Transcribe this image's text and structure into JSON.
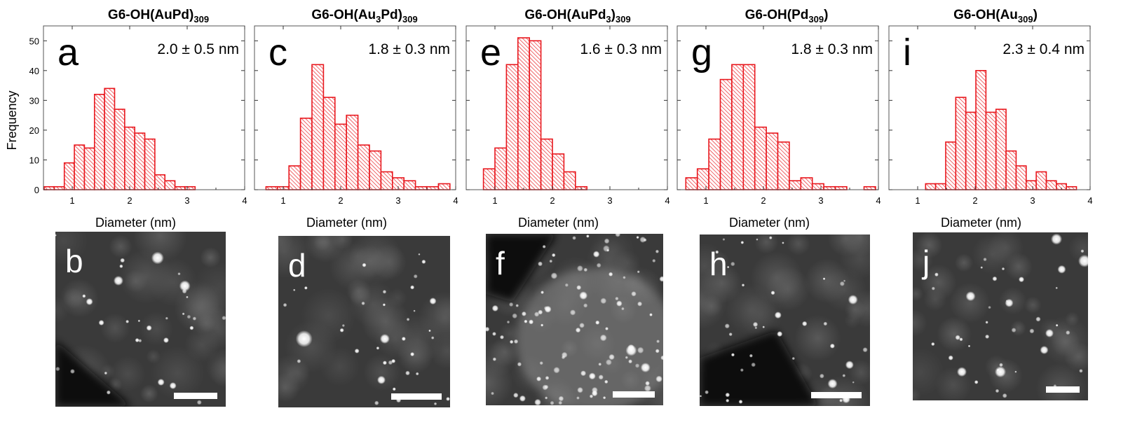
{
  "shared": {
    "ylabel": "Frequency",
    "xlabel": "Diameter (nm)",
    "bar_color": "#e8171d",
    "hatch_color": "#e8171d",
    "image_background": "#0b0b0b",
    "particle_color": "#ffffff"
  },
  "chart_data": [
    {
      "type": "bar",
      "title": {
        "main": "G6-OH(AuPd)",
        "sub": "309",
        "tail": ""
      },
      "panel_letter": "a",
      "stat": "2.0 ± 0.5 nm",
      "xlabel": "Diameter (nm)",
      "ylabel": "Frequency",
      "xlim": [
        0.5,
        4
      ],
      "ylim": [
        0,
        55
      ],
      "xticks": [
        1,
        2,
        3,
        4
      ],
      "yticks": [
        0,
        10,
        20,
        30,
        40,
        50
      ],
      "bin_width": 0.175,
      "bins": [
        {
          "x": 0.6,
          "y": 1
        },
        {
          "x": 0.775,
          "y": 1
        },
        {
          "x": 0.95,
          "y": 9
        },
        {
          "x": 1.125,
          "y": 15
        },
        {
          "x": 1.3,
          "y": 14
        },
        {
          "x": 1.475,
          "y": 32
        },
        {
          "x": 1.65,
          "y": 34
        },
        {
          "x": 1.825,
          "y": 27
        },
        {
          "x": 2.0,
          "y": 21
        },
        {
          "x": 2.175,
          "y": 19
        },
        {
          "x": 2.35,
          "y": 17
        },
        {
          "x": 2.525,
          "y": 5
        },
        {
          "x": 2.7,
          "y": 3
        },
        {
          "x": 2.875,
          "y": 1
        },
        {
          "x": 3.05,
          "y": 1
        }
      ]
    },
    {
      "type": "bar",
      "title": {
        "main": "G6-OH(Au",
        "sub": "3",
        "tail": "Pd)",
        "sub2": "309"
      },
      "panel_letter": "c",
      "stat": "1.8 ± 0.3 nm",
      "xlabel": "Diameter (nm)",
      "ylabel": "",
      "xlim": [
        0.5,
        4
      ],
      "ylim": [
        0,
        55
      ],
      "xticks": [
        1,
        2,
        3,
        4
      ],
      "yticks": [
        0,
        10,
        20,
        30,
        40,
        50
      ],
      "bin_width": 0.2,
      "bins": [
        {
          "x": 0.8,
          "y": 1
        },
        {
          "x": 1.0,
          "y": 1
        },
        {
          "x": 1.2,
          "y": 8
        },
        {
          "x": 1.4,
          "y": 24
        },
        {
          "x": 1.6,
          "y": 42
        },
        {
          "x": 1.8,
          "y": 31
        },
        {
          "x": 2.0,
          "y": 22
        },
        {
          "x": 2.2,
          "y": 25
        },
        {
          "x": 2.4,
          "y": 15
        },
        {
          "x": 2.6,
          "y": 13
        },
        {
          "x": 2.8,
          "y": 6
        },
        {
          "x": 3.0,
          "y": 4
        },
        {
          "x": 3.2,
          "y": 3
        },
        {
          "x": 3.4,
          "y": 1
        },
        {
          "x": 3.6,
          "y": 1
        },
        {
          "x": 3.8,
          "y": 2
        }
      ]
    },
    {
      "type": "bar",
      "title": {
        "main": "G6-OH(AuPd",
        "sub": "3",
        "tail": ")",
        "sub2": "309"
      },
      "panel_letter": "e",
      "stat": "1.6 ± 0.3 nm",
      "xlabel": "Diameter (nm)",
      "ylabel": "",
      "xlim": [
        0.5,
        4
      ],
      "ylim": [
        0,
        55
      ],
      "xticks": [
        1,
        2,
        3,
        4
      ],
      "yticks": [
        0,
        10,
        20,
        30,
        40,
        50
      ],
      "bin_width": 0.2,
      "bins": [
        {
          "x": 0.9,
          "y": 7
        },
        {
          "x": 1.1,
          "y": 14
        },
        {
          "x": 1.3,
          "y": 42
        },
        {
          "x": 1.5,
          "y": 51
        },
        {
          "x": 1.7,
          "y": 50
        },
        {
          "x": 1.9,
          "y": 17
        },
        {
          "x": 2.1,
          "y": 12
        },
        {
          "x": 2.3,
          "y": 6
        },
        {
          "x": 2.5,
          "y": 1
        }
      ]
    },
    {
      "type": "bar",
      "title": {
        "main": "G6-OH(Pd",
        "sub": "309",
        "tail": ")"
      },
      "panel_letter": "g",
      "stat": "1.8 ± 0.3 nm",
      "xlabel": "Diameter (nm)",
      "ylabel": "",
      "xlim": [
        0.5,
        4
      ],
      "ylim": [
        0,
        55
      ],
      "xticks": [
        1,
        2,
        3,
        4
      ],
      "yticks": [
        0,
        10,
        20,
        30,
        40,
        50
      ],
      "bin_width": 0.2,
      "bins": [
        {
          "x": 0.75,
          "y": 4
        },
        {
          "x": 0.95,
          "y": 7
        },
        {
          "x": 1.15,
          "y": 17
        },
        {
          "x": 1.35,
          "y": 37
        },
        {
          "x": 1.55,
          "y": 42
        },
        {
          "x": 1.75,
          "y": 42
        },
        {
          "x": 1.95,
          "y": 21
        },
        {
          "x": 2.15,
          "y": 19
        },
        {
          "x": 2.35,
          "y": 16
        },
        {
          "x": 2.55,
          "y": 3
        },
        {
          "x": 2.75,
          "y": 4
        },
        {
          "x": 2.95,
          "y": 2
        },
        {
          "x": 3.15,
          "y": 1
        },
        {
          "x": 3.35,
          "y": 1
        },
        {
          "x": 3.85,
          "y": 1
        }
      ]
    },
    {
      "type": "bar",
      "title": {
        "main": "G6-OH(Au",
        "sub": "309",
        "tail": ")"
      },
      "panel_letter": "i",
      "stat": "2.3 ± 0.4 nm",
      "xlabel": "Diameter (nm)",
      "ylabel": "",
      "xlim": [
        0.5,
        4
      ],
      "ylim": [
        0,
        55
      ],
      "xticks": [
        1,
        2,
        3,
        4
      ],
      "yticks": [
        0,
        10,
        20,
        30,
        40,
        50
      ],
      "bin_width": 0.175,
      "bins": [
        {
          "x": 1.225,
          "y": 2
        },
        {
          "x": 1.4,
          "y": 2
        },
        {
          "x": 1.575,
          "y": 16
        },
        {
          "x": 1.75,
          "y": 31
        },
        {
          "x": 1.925,
          "y": 26
        },
        {
          "x": 2.1,
          "y": 40
        },
        {
          "x": 2.275,
          "y": 26
        },
        {
          "x": 2.45,
          "y": 27
        },
        {
          "x": 2.625,
          "y": 13
        },
        {
          "x": 2.8,
          "y": 8
        },
        {
          "x": 2.975,
          "y": 3
        },
        {
          "x": 3.15,
          "y": 6
        },
        {
          "x": 3.325,
          "y": 3
        },
        {
          "x": 3.5,
          "y": 2
        },
        {
          "x": 3.675,
          "y": 1
        }
      ]
    }
  ],
  "micrographs": [
    {
      "letter": "b"
    },
    {
      "letter": "d"
    },
    {
      "letter": "f"
    },
    {
      "letter": "h"
    },
    {
      "letter": "j"
    }
  ]
}
